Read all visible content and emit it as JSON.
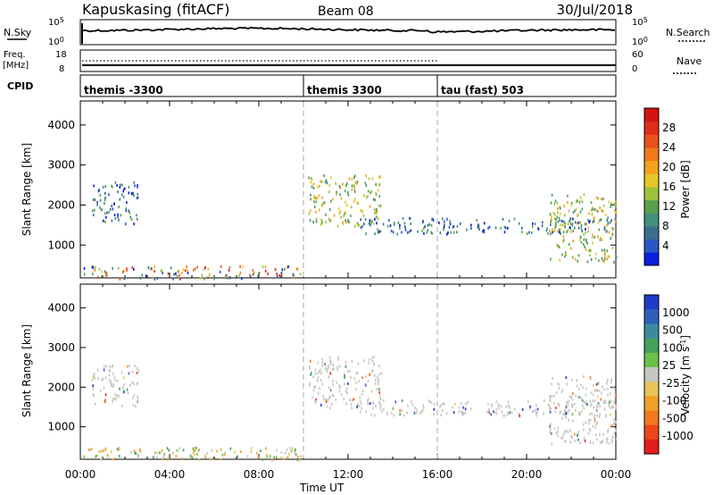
{
  "header": {
    "station": "Kapuskasing (fitACF)",
    "beam": "Beam 08",
    "date": "30/Jul/2018"
  },
  "strip_labels": {
    "nsky": "N.Sky",
    "nsky_hi": "10^5",
    "nsky_lo": "10^0",
    "nsearch": "N.Search",
    "nsearch_hi": "10^5",
    "nsearch_lo": "10^0",
    "freq": "Freq.",
    "freq_unit": "[MHz]",
    "freq_hi": "18",
    "freq_lo": "8",
    "nave": "Nave",
    "nave_hi": "60",
    "nave_lo": "0",
    "cpid": "CPID"
  },
  "cpid_segments": [
    {
      "label": "themis -3300",
      "start_hour": 0,
      "end_hour": 10
    },
    {
      "label": "themis 3300",
      "start_hour": 10,
      "end_hour": 16
    },
    {
      "label": "tau (fast) 503",
      "start_hour": 16,
      "end_hour": 24
    }
  ],
  "chart_data": [
    {
      "type": "heatmap",
      "name": "power-panel",
      "xlabel": "Time UT",
      "ylabel": "Slant Range [km]",
      "xlim": [
        0,
        24
      ],
      "ylim": [
        180,
        4600
      ],
      "x_ticks": [
        "00:00",
        "04:00",
        "08:00",
        "12:00",
        "16:00",
        "20:00",
        "00:00"
      ],
      "y_ticks": [
        1000,
        2000,
        3000,
        4000
      ],
      "colorbar": {
        "label": "Power [dB]",
        "ticks": [
          "4",
          "8",
          "12",
          "16",
          "20",
          "24",
          "28"
        ],
        "colors": [
          "#0a1edc",
          "#2a55c4",
          "#3d6e8e",
          "#41907a",
          "#5aa04e",
          "#9ec23a",
          "#e3c728",
          "#f2a21e",
          "#f07a1a",
          "#e8501c",
          "#de2d18",
          "#d41414"
        ]
      },
      "echo_regions": [
        {
          "t_start": 0.1,
          "t_end": 9.9,
          "r_low": 180,
          "r_high": 500,
          "level": "mixed"
        },
        {
          "t_start": 0.5,
          "t_end": 2.6,
          "r_low": 1550,
          "r_high": 2600,
          "level": "low-mid"
        },
        {
          "t_start": 10.2,
          "t_end": 13.5,
          "r_low": 1500,
          "r_high": 2800,
          "level": "mid-high"
        },
        {
          "t_start": 12.5,
          "t_end": 24.0,
          "r_low": 1300,
          "r_high": 1700,
          "level": "low-mid"
        },
        {
          "t_start": 21.0,
          "t_end": 24.0,
          "r_low": 600,
          "r_high": 2300,
          "level": "mid-high"
        }
      ]
    },
    {
      "type": "heatmap",
      "name": "velocity-panel",
      "xlabel": "Time UT",
      "ylabel": "Slant Range [km]",
      "xlim": [
        0,
        24
      ],
      "ylim": [
        180,
        4600
      ],
      "x_ticks": [
        "00:00",
        "04:00",
        "08:00",
        "12:00",
        "16:00",
        "20:00",
        "00:00"
      ],
      "y_ticks": [
        1000,
        2000,
        3000,
        4000
      ],
      "colorbar": {
        "label": "Velocity [m s^-1]",
        "ticks": [
          "1000",
          "500",
          "100",
          "25",
          "-25",
          "-100",
          "-500",
          "-1000"
        ],
        "colors": [
          "#1e3cc8",
          "#2f5fb8",
          "#3c8aa0",
          "#44a05a",
          "#6cc04a",
          "#c6c6c2",
          "#e8c35a",
          "#f0a028",
          "#f07a1e",
          "#e8481c",
          "#e01e1e"
        ]
      },
      "echo_regions": [
        {
          "t_start": 0.1,
          "t_end": 9.9,
          "r_low": 180,
          "r_high": 500,
          "level": "mixed"
        },
        {
          "t_start": 0.5,
          "t_end": 2.6,
          "r_low": 1550,
          "r_high": 2600,
          "level": "near-zero"
        },
        {
          "t_start": 10.2,
          "t_end": 13.5,
          "r_low": 1500,
          "r_high": 2800,
          "level": "near-zero"
        },
        {
          "t_start": 12.5,
          "t_end": 24.0,
          "r_low": 1300,
          "r_high": 1700,
          "level": "near-zero"
        },
        {
          "t_start": 21.0,
          "t_end": 24.0,
          "r_low": 600,
          "r_high": 2300,
          "level": "near-zero"
        }
      ]
    }
  ]
}
